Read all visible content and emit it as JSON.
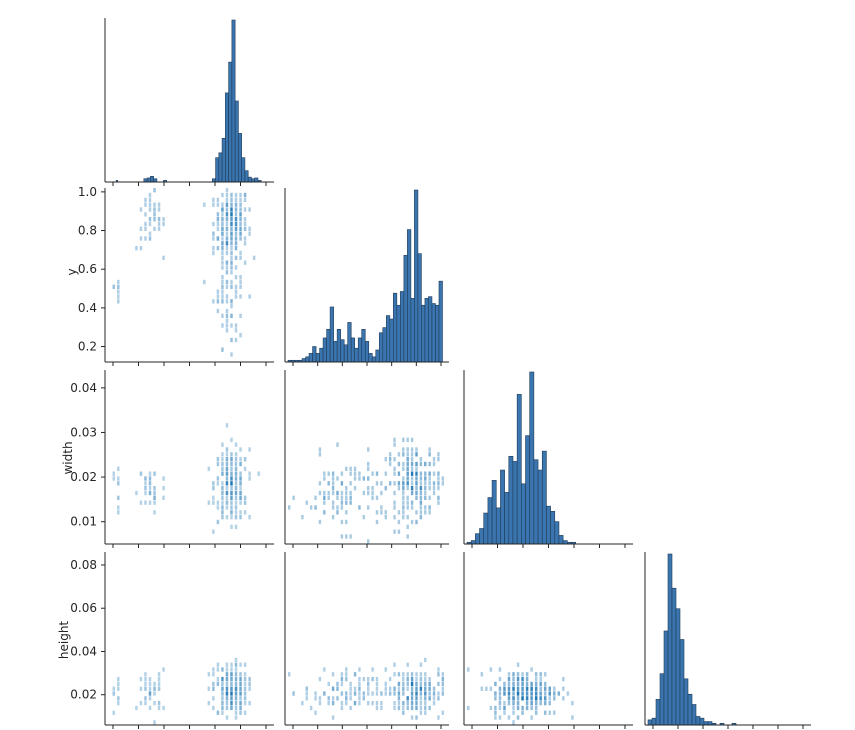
{
  "chart_data": {
    "type": "pairplot",
    "layout": "lower-triangle (corner)",
    "colors": {
      "diag_fill": "#3b75af",
      "diag_edge": "#1f3b57",
      "heat": "#1f77b4"
    },
    "variables": [
      {
        "name": "x",
        "label": "",
        "range": [
          0.0,
          1.0
        ]
      },
      {
        "name": "y",
        "label": "y",
        "range": [
          0.12,
          1.02
        ],
        "ticks": [
          0.2,
          0.4,
          0.6,
          0.8,
          1.0
        ],
        "tick_labels": [
          "0.2",
          "0.4",
          "0.6",
          "0.8",
          "1.0"
        ]
      },
      {
        "name": "width",
        "label": "width",
        "range": [
          0.005,
          0.044
        ],
        "ticks": [
          0.01,
          0.02,
          0.03,
          0.04
        ],
        "tick_labels": [
          "0.01",
          "0.02",
          "0.03",
          "0.04"
        ]
      },
      {
        "name": "height",
        "label": "height",
        "range": [
          0.006,
          0.086
        ],
        "ticks": [
          0.02,
          0.04,
          0.06,
          0.08
        ],
        "tick_labels": [
          "0.02",
          "0.04",
          "0.06",
          "0.08"
        ]
      }
    ],
    "diagonal_histograms": [
      {
        "variable": "x",
        "bins": [
          [
            0.05,
            0.06,
            0.01
          ],
          [
            0.22,
            0.24,
            0.02
          ],
          [
            0.24,
            0.26,
            0.025
          ],
          [
            0.26,
            0.28,
            0.035
          ],
          [
            0.28,
            0.3,
            0.02
          ],
          [
            0.34,
            0.36,
            0.01
          ],
          [
            0.64,
            0.66,
            0.02
          ],
          [
            0.66,
            0.68,
            0.15
          ],
          [
            0.68,
            0.7,
            0.18
          ],
          [
            0.7,
            0.72,
            0.27
          ],
          [
            0.72,
            0.74,
            0.55
          ],
          [
            0.74,
            0.76,
            0.74
          ],
          [
            0.76,
            0.78,
            1.0
          ],
          [
            0.78,
            0.8,
            0.5
          ],
          [
            0.8,
            0.82,
            0.3
          ],
          [
            0.82,
            0.84,
            0.15
          ],
          [
            0.84,
            0.86,
            0.07
          ],
          [
            0.86,
            0.88,
            0.03
          ],
          [
            0.88,
            0.9,
            0.02
          ],
          [
            0.9,
            0.92,
            0.025
          ],
          [
            0.92,
            0.94,
            0.01
          ]
        ]
      },
      {
        "variable": "y",
        "bins": [
          [
            0.12,
            0.14,
            0.01
          ],
          [
            0.14,
            0.16,
            0.01
          ],
          [
            0.16,
            0.18,
            0.01
          ],
          [
            0.18,
            0.2,
            0.01
          ],
          [
            0.2,
            0.22,
            0.02
          ],
          [
            0.22,
            0.24,
            0.03
          ],
          [
            0.24,
            0.26,
            0.05
          ],
          [
            0.26,
            0.28,
            0.09
          ],
          [
            0.28,
            0.3,
            0.05
          ],
          [
            0.3,
            0.32,
            0.08
          ],
          [
            0.32,
            0.34,
            0.14
          ],
          [
            0.34,
            0.36,
            0.19
          ],
          [
            0.36,
            0.38,
            0.32
          ],
          [
            0.38,
            0.4,
            0.12
          ],
          [
            0.4,
            0.42,
            0.19
          ],
          [
            0.42,
            0.44,
            0.13
          ],
          [
            0.44,
            0.46,
            0.1
          ],
          [
            0.46,
            0.48,
            0.23
          ],
          [
            0.48,
            0.5,
            0.14
          ],
          [
            0.5,
            0.52,
            0.08
          ],
          [
            0.52,
            0.54,
            0.14
          ],
          [
            0.54,
            0.56,
            0.19
          ],
          [
            0.56,
            0.58,
            0.12
          ],
          [
            0.58,
            0.6,
            0.05
          ],
          [
            0.6,
            0.62,
            0.03
          ],
          [
            0.62,
            0.64,
            0.07
          ],
          [
            0.64,
            0.66,
            0.17
          ],
          [
            0.66,
            0.68,
            0.2
          ],
          [
            0.68,
            0.7,
            0.27
          ],
          [
            0.7,
            0.72,
            0.25
          ],
          [
            0.72,
            0.74,
            0.4
          ],
          [
            0.74,
            0.76,
            0.33
          ],
          [
            0.76,
            0.78,
            0.41
          ],
          [
            0.78,
            0.8,
            0.62
          ],
          [
            0.8,
            0.82,
            0.77
          ],
          [
            0.82,
            0.84,
            0.37
          ],
          [
            0.84,
            0.86,
            1.0
          ],
          [
            0.86,
            0.88,
            0.63
          ],
          [
            0.88,
            0.9,
            0.33
          ],
          [
            0.9,
            0.92,
            0.37
          ],
          [
            0.92,
            0.94,
            0.38
          ],
          [
            0.94,
            0.96,
            0.34
          ],
          [
            0.96,
            0.98,
            0.33
          ],
          [
            0.98,
            1.0,
            0.47
          ]
        ]
      },
      {
        "variable": "width",
        "bins": [
          [
            0.005,
            0.006,
            0.01
          ],
          [
            0.006,
            0.007,
            0.02
          ],
          [
            0.007,
            0.008,
            0.06
          ],
          [
            0.008,
            0.009,
            0.09
          ],
          [
            0.009,
            0.01,
            0.18
          ],
          [
            0.01,
            0.011,
            0.27
          ],
          [
            0.011,
            0.012,
            0.37
          ],
          [
            0.012,
            0.013,
            0.21
          ],
          [
            0.013,
            0.014,
            0.43
          ],
          [
            0.014,
            0.015,
            0.3
          ],
          [
            0.015,
            0.016,
            0.51
          ],
          [
            0.016,
            0.017,
            0.48
          ],
          [
            0.017,
            0.018,
            0.87
          ],
          [
            0.018,
            0.019,
            0.35
          ],
          [
            0.019,
            0.02,
            0.63
          ],
          [
            0.02,
            0.021,
            1.0
          ],
          [
            0.021,
            0.022,
            0.49
          ],
          [
            0.022,
            0.023,
            0.43
          ],
          [
            0.023,
            0.024,
            0.54
          ],
          [
            0.024,
            0.025,
            0.22
          ],
          [
            0.025,
            0.026,
            0.19
          ],
          [
            0.026,
            0.027,
            0.13
          ],
          [
            0.027,
            0.028,
            0.05
          ],
          [
            0.028,
            0.029,
            0.02
          ],
          [
            0.029,
            0.03,
            0.01
          ],
          [
            0.03,
            0.031,
            0.01
          ]
        ]
      },
      {
        "variable": "height",
        "bins": [
          [
            0.006,
            0.008,
            0.03
          ],
          [
            0.008,
            0.01,
            0.04
          ],
          [
            0.01,
            0.012,
            0.15
          ],
          [
            0.012,
            0.014,
            0.3
          ],
          [
            0.014,
            0.016,
            0.55
          ],
          [
            0.016,
            0.018,
            1.0
          ],
          [
            0.018,
            0.02,
            0.8
          ],
          [
            0.02,
            0.022,
            0.68
          ],
          [
            0.022,
            0.024,
            0.5
          ],
          [
            0.024,
            0.026,
            0.27
          ],
          [
            0.026,
            0.028,
            0.18
          ],
          [
            0.028,
            0.03,
            0.12
          ],
          [
            0.03,
            0.032,
            0.05
          ],
          [
            0.032,
            0.034,
            0.04
          ],
          [
            0.034,
            0.036,
            0.02
          ],
          [
            0.036,
            0.038,
            0.02
          ],
          [
            0.038,
            0.04,
            0.01
          ],
          [
            0.042,
            0.044,
            0.01
          ],
          [
            0.048,
            0.05,
            0.01
          ]
        ]
      }
    ],
    "bivariate_clusters": [
      {
        "x_var": "x",
        "y_var": "y",
        "clusters": [
          [
            0.76,
            0.84,
            0.05,
            0.09,
            220
          ],
          [
            0.75,
            0.5,
            0.05,
            0.15,
            90
          ],
          [
            0.27,
            0.85,
            0.04,
            0.08,
            40
          ],
          [
            0.06,
            0.5,
            0.01,
            0.06,
            8
          ]
        ]
      },
      {
        "x_var": "x",
        "y_var": "width",
        "clusters": [
          [
            0.76,
            0.018,
            0.05,
            0.004,
            240
          ],
          [
            0.27,
            0.017,
            0.04,
            0.003,
            40
          ],
          [
            0.06,
            0.018,
            0.01,
            0.004,
            10
          ]
        ]
      },
      {
        "x_var": "x",
        "y_var": "height",
        "clusters": [
          [
            0.76,
            0.022,
            0.05,
            0.006,
            240
          ],
          [
            0.27,
            0.021,
            0.04,
            0.005,
            40
          ],
          [
            0.06,
            0.021,
            0.01,
            0.004,
            10
          ]
        ]
      },
      {
        "x_var": "y",
        "y_var": "width",
        "clusters": [
          [
            0.85,
            0.019,
            0.08,
            0.004,
            230
          ],
          [
            0.45,
            0.016,
            0.12,
            0.004,
            110
          ]
        ]
      },
      {
        "x_var": "y",
        "y_var": "height",
        "clusters": [
          [
            0.85,
            0.021,
            0.08,
            0.005,
            230
          ],
          [
            0.45,
            0.021,
            0.12,
            0.005,
            110
          ]
        ]
      },
      {
        "x_var": "width",
        "y_var": "height",
        "clusters": [
          [
            0.019,
            0.021,
            0.004,
            0.005,
            340
          ]
        ]
      }
    ]
  }
}
